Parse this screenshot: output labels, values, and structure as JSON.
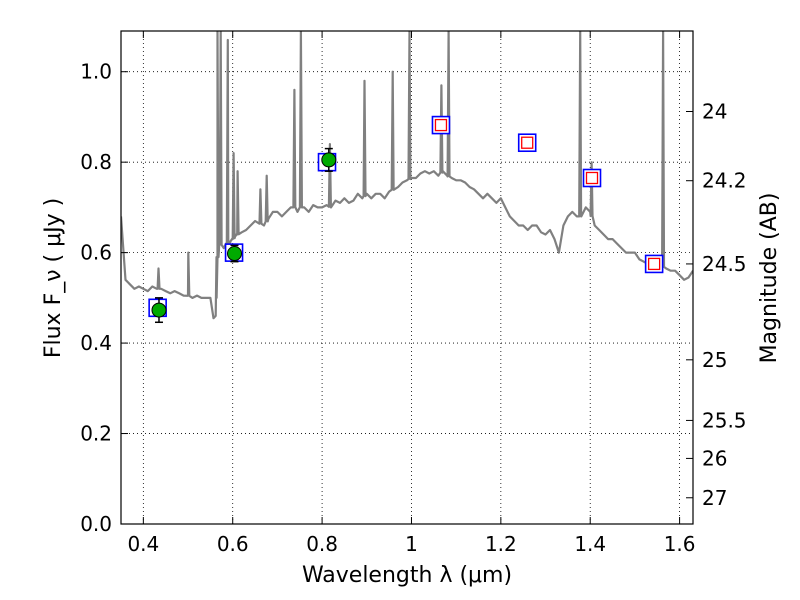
{
  "chart_data": {
    "type": "line",
    "xlabel": "Wavelength  λ (μm)",
    "ylabel": "Flux  F_ν  ( μJy )",
    "ylabel_right": "Magnitude (AB)",
    "xlim": [
      0.35,
      1.63
    ],
    "ylim": [
      0.0,
      1.09
    ],
    "grid": true,
    "x_ticks": [
      0.4,
      0.6,
      0.8,
      1.0,
      1.2,
      1.4,
      1.6
    ],
    "x_tick_labels": [
      "0.4",
      "0.6",
      "0.8",
      "1",
      "1.2",
      "1.4",
      "1.6"
    ],
    "y_ticks": [
      0.0,
      0.2,
      0.4,
      0.6,
      0.8,
      1.0
    ],
    "y_tick_labels": [
      "0.0",
      "0.2",
      "0.4",
      "0.6",
      "0.8",
      "1.0"
    ],
    "right_ticks": [
      {
        "label": "24",
        "flux": 0.912
      },
      {
        "label": "24.2",
        "flux": 0.759
      },
      {
        "label": "24.5",
        "flux": 0.575
      },
      {
        "label": "25",
        "flux": 0.363
      },
      {
        "label": "25.5",
        "flux": 0.229
      },
      {
        "label": "26",
        "flux": 0.145
      },
      {
        "label": "27",
        "flux": 0.058
      }
    ],
    "series": [
      {
        "kind": "spectrum",
        "color": "#808080",
        "x": [
          0.35,
          0.36,
          0.37,
          0.38,
          0.39,
          0.4,
          0.41,
          0.42,
          0.43,
          0.44,
          0.45,
          0.46,
          0.47,
          0.48,
          0.49,
          0.5,
          0.51,
          0.52,
          0.53,
          0.54,
          0.55,
          0.557,
          0.562,
          0.564,
          0.566,
          0.57,
          0.58,
          0.585,
          0.59,
          0.595,
          0.6,
          0.605,
          0.61,
          0.62,
          0.63,
          0.64,
          0.65,
          0.66,
          0.67,
          0.68,
          0.69,
          0.7,
          0.71,
          0.72,
          0.73,
          0.74,
          0.745,
          0.75,
          0.76,
          0.77,
          0.78,
          0.79,
          0.8,
          0.81,
          0.82,
          0.83,
          0.84,
          0.85,
          0.86,
          0.87,
          0.88,
          0.89,
          0.9,
          0.91,
          0.92,
          0.93,
          0.94,
          0.95,
          0.96,
          0.97,
          0.98,
          0.99,
          1.0,
          1.01,
          1.02,
          1.03,
          1.04,
          1.05,
          1.06,
          1.07,
          1.08,
          1.09,
          1.1,
          1.11,
          1.12,
          1.13,
          1.14,
          1.15,
          1.16,
          1.17,
          1.18,
          1.19,
          1.2,
          1.21,
          1.22,
          1.23,
          1.24,
          1.25,
          1.26,
          1.27,
          1.28,
          1.29,
          1.3,
          1.31,
          1.32,
          1.33,
          1.34,
          1.35,
          1.36,
          1.37,
          1.38,
          1.39,
          1.4,
          1.41,
          1.42,
          1.43,
          1.44,
          1.45,
          1.46,
          1.47,
          1.48,
          1.49,
          1.5,
          1.51,
          1.52,
          1.53,
          1.54,
          1.55,
          1.56,
          1.57,
          1.58,
          1.59,
          1.6,
          1.61,
          1.62,
          1.63
        ],
        "y": [
          0.68,
          0.54,
          0.53,
          0.52,
          0.525,
          0.52,
          0.515,
          0.525,
          0.52,
          0.52,
          0.515,
          0.51,
          0.515,
          0.51,
          0.505,
          0.505,
          0.5,
          0.505,
          0.5,
          0.5,
          0.5,
          0.455,
          0.46,
          0.5,
          0.59,
          0.62,
          0.61,
          0.62,
          0.61,
          0.625,
          0.63,
          0.635,
          0.64,
          0.645,
          0.65,
          0.66,
          0.67,
          0.665,
          0.66,
          0.675,
          0.69,
          0.69,
          0.68,
          0.69,
          0.7,
          0.7,
          0.69,
          0.7,
          0.7,
          0.69,
          0.705,
          0.7,
          0.7,
          0.705,
          0.7,
          0.715,
          0.71,
          0.72,
          0.71,
          0.715,
          0.73,
          0.72,
          0.73,
          0.72,
          0.73,
          0.73,
          0.72,
          0.735,
          0.74,
          0.745,
          0.755,
          0.76,
          0.765,
          0.765,
          0.775,
          0.78,
          0.775,
          0.78,
          0.77,
          0.78,
          0.77,
          0.765,
          0.76,
          0.76,
          0.755,
          0.745,
          0.74,
          0.73,
          0.72,
          0.73,
          0.72,
          0.71,
          0.72,
          0.7,
          0.68,
          0.67,
          0.66,
          0.66,
          0.65,
          0.66,
          0.66,
          0.645,
          0.64,
          0.65,
          0.63,
          0.6,
          0.66,
          0.68,
          0.69,
          0.68,
          0.68,
          0.7,
          0.69,
          0.66,
          0.65,
          0.64,
          0.63,
          0.63,
          0.62,
          0.61,
          0.6,
          0.6,
          0.6,
          0.585,
          0.58,
          0.575,
          0.575,
          0.57,
          0.57,
          0.565,
          0.56,
          0.56,
          0.55,
          0.54,
          0.545,
          0.56
        ],
        "lines": [
          {
            "x": 0.434,
            "peak": 0.565
          },
          {
            "x": 0.5007,
            "peak": 0.6
          },
          {
            "x": 0.566,
            "peak": 1.09
          },
          {
            "x": 0.573,
            "peak": 1.09
          },
          {
            "x": 0.589,
            "peak": 1.07
          },
          {
            "x": 0.602,
            "peak": 0.82
          },
          {
            "x": 0.611,
            "peak": 0.78
          },
          {
            "x": 0.662,
            "peak": 0.74
          },
          {
            "x": 0.676,
            "peak": 0.77
          },
          {
            "x": 0.738,
            "peak": 0.96
          },
          {
            "x": 0.7525,
            "peak": 1.09
          },
          {
            "x": 0.8175,
            "peak": 0.84
          },
          {
            "x": 0.895,
            "peak": 0.98
          },
          {
            "x": 0.958,
            "peak": 1.0
          },
          {
            "x": 0.9955,
            "peak": 1.09
          },
          {
            "x": 1.067,
            "peak": 0.97
          },
          {
            "x": 1.083,
            "peak": 1.09
          },
          {
            "x": 1.3775,
            "peak": 1.09
          },
          {
            "x": 1.403,
            "peak": 0.8
          },
          {
            "x": 1.563,
            "peak": 1.09
          }
        ]
      },
      {
        "kind": "model-squares",
        "color": "#0000ff",
        "fill": "#ffffff",
        "x": [
          0.432,
          0.603,
          0.811,
          1.066,
          1.259,
          1.404,
          1.543
        ],
        "values": [
          0.478,
          0.6,
          0.8,
          0.882,
          0.843,
          0.765,
          0.575
        ]
      },
      {
        "kind": "model-inner-squares",
        "color": "#ff0000",
        "x": [
          1.066,
          1.259,
          1.404,
          1.543
        ],
        "values": [
          0.882,
          0.843,
          0.765,
          0.575
        ]
      },
      {
        "kind": "observed-points",
        "color": "#00aa00",
        "x": [
          0.435,
          0.604,
          0.815
        ],
        "values": [
          0.473,
          0.598,
          0.805
        ],
        "err": [
          0.027,
          0.018,
          0.025
        ]
      }
    ]
  }
}
